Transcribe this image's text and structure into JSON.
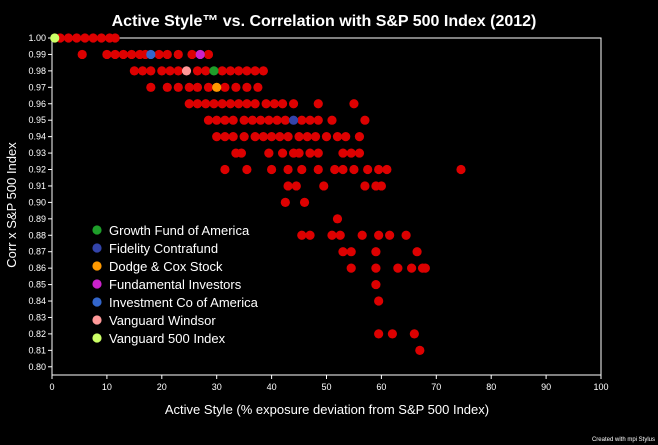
{
  "chart_data": {
    "type": "scatter",
    "title": "Active Style™ vs. Correlation with S&P 500 Index (2012)",
    "xlabel": "Active Style (% exposure deviation from S&P 500 Index)",
    "ylabel": "Corr x S&P 500 Index",
    "xlim": [
      0,
      100
    ],
    "ylim": [
      0.795,
      1.0
    ],
    "xticks": [
      "0",
      "10",
      "20",
      "30",
      "40",
      "50",
      "60",
      "70",
      "80",
      "90",
      "100"
    ],
    "yticks": [
      "1.00",
      "0.99",
      "0.98",
      "0.97",
      "0.96",
      "0.95",
      "0.94",
      "0.93",
      "0.92",
      "0.91",
      "0.90",
      "0.89",
      "0.88",
      "0.87",
      "0.86",
      "0.85",
      "0.84",
      "0.83",
      "0.82",
      "0.81",
      "0.80"
    ],
    "grid": false,
    "legend_position": "bottom-left",
    "footer_text": "Created with mpi Stylus",
    "colors": {
      "background": "#000000",
      "axes": "#ffffff",
      "points": "#dd0000"
    },
    "series": [
      {
        "name": "Growth Fund of America",
        "color": "#1e9e2a",
        "points": [
          [
            29.5,
            0.98
          ]
        ]
      },
      {
        "name": "Fidelity Contrafund",
        "color": "#3344aa",
        "points": [
          [
            44,
            0.95
          ]
        ]
      },
      {
        "name": "Dodge & Cox Stock",
        "color": "#ff9900",
        "points": [
          [
            30,
            0.97
          ]
        ]
      },
      {
        "name": "Fundamental Investors",
        "color": "#cc22cc",
        "points": [
          [
            27,
            0.99
          ]
        ]
      },
      {
        "name": "Investment Co of America",
        "color": "#3366cc",
        "points": [
          [
            18,
            0.99
          ]
        ]
      },
      {
        "name": "Vanguard Windsor",
        "color": "#ff9999",
        "points": [
          [
            24.5,
            0.98
          ]
        ]
      },
      {
        "name": "Vanguard 500 Index",
        "color": "#ccff66",
        "points": [
          [
            0.5,
            1.0
          ]
        ]
      }
    ],
    "funds": [
      [
        1.5,
        1.0
      ],
      [
        3,
        1.0
      ],
      [
        4.5,
        1.0
      ],
      [
        6,
        1.0
      ],
      [
        7.5,
        1.0
      ],
      [
        9,
        1.0
      ],
      [
        10.5,
        1.0
      ],
      [
        11.5,
        1.0
      ],
      [
        5.5,
        0.99
      ],
      [
        10,
        0.99
      ],
      [
        11.5,
        0.99
      ],
      [
        13,
        0.99
      ],
      [
        14.5,
        0.99
      ],
      [
        16,
        0.99
      ],
      [
        17,
        0.99
      ],
      [
        19.5,
        0.99
      ],
      [
        21,
        0.99
      ],
      [
        23,
        0.99
      ],
      [
        25.5,
        0.99
      ],
      [
        28.5,
        0.99
      ],
      [
        15,
        0.98
      ],
      [
        16.5,
        0.98
      ],
      [
        18,
        0.98
      ],
      [
        20,
        0.98
      ],
      [
        21.5,
        0.98
      ],
      [
        23,
        0.98
      ],
      [
        26.5,
        0.98
      ],
      [
        28,
        0.98
      ],
      [
        31,
        0.98
      ],
      [
        32.5,
        0.98
      ],
      [
        34,
        0.98
      ],
      [
        35.5,
        0.98
      ],
      [
        37,
        0.98
      ],
      [
        38.5,
        0.98
      ],
      [
        18,
        0.97
      ],
      [
        21,
        0.97
      ],
      [
        23,
        0.97
      ],
      [
        25,
        0.97
      ],
      [
        26.5,
        0.97
      ],
      [
        28.5,
        0.97
      ],
      [
        31.5,
        0.97
      ],
      [
        33.5,
        0.97
      ],
      [
        35.5,
        0.97
      ],
      [
        37.5,
        0.97
      ],
      [
        25,
        0.96
      ],
      [
        26.5,
        0.96
      ],
      [
        28,
        0.96
      ],
      [
        29.5,
        0.96
      ],
      [
        31,
        0.96
      ],
      [
        32.5,
        0.96
      ],
      [
        34,
        0.96
      ],
      [
        35.5,
        0.96
      ],
      [
        37,
        0.96
      ],
      [
        39,
        0.96
      ],
      [
        40.5,
        0.96
      ],
      [
        42,
        0.96
      ],
      [
        44,
        0.96
      ],
      [
        48.5,
        0.96
      ],
      [
        55,
        0.96
      ],
      [
        28.5,
        0.95
      ],
      [
        30,
        0.95
      ],
      [
        31.5,
        0.95
      ],
      [
        33,
        0.95
      ],
      [
        35,
        0.95
      ],
      [
        36.5,
        0.95
      ],
      [
        38,
        0.95
      ],
      [
        39.5,
        0.95
      ],
      [
        41,
        0.95
      ],
      [
        42.5,
        0.95
      ],
      [
        45.5,
        0.95
      ],
      [
        47,
        0.95
      ],
      [
        48.5,
        0.95
      ],
      [
        51,
        0.95
      ],
      [
        57,
        0.95
      ],
      [
        30,
        0.94
      ],
      [
        31.5,
        0.94
      ],
      [
        33,
        0.94
      ],
      [
        35,
        0.94
      ],
      [
        37,
        0.94
      ],
      [
        38.5,
        0.94
      ],
      [
        40,
        0.94
      ],
      [
        41.5,
        0.94
      ],
      [
        43,
        0.94
      ],
      [
        45,
        0.94
      ],
      [
        46.5,
        0.94
      ],
      [
        48,
        0.94
      ],
      [
        50,
        0.94
      ],
      [
        52,
        0.94
      ],
      [
        53.5,
        0.94
      ],
      [
        56,
        0.94
      ],
      [
        33.5,
        0.93
      ],
      [
        34.5,
        0.93
      ],
      [
        39.5,
        0.93
      ],
      [
        42,
        0.93
      ],
      [
        44,
        0.93
      ],
      [
        45,
        0.93
      ],
      [
        47,
        0.93
      ],
      [
        48.5,
        0.93
      ],
      [
        53,
        0.93
      ],
      [
        54.5,
        0.93
      ],
      [
        56,
        0.93
      ],
      [
        31.5,
        0.92
      ],
      [
        35.5,
        0.92
      ],
      [
        40,
        0.92
      ],
      [
        43,
        0.92
      ],
      [
        45.5,
        0.92
      ],
      [
        48.5,
        0.92
      ],
      [
        51.5,
        0.92
      ],
      [
        53,
        0.92
      ],
      [
        55,
        0.92
      ],
      [
        57.5,
        0.92
      ],
      [
        59.5,
        0.92
      ],
      [
        61,
        0.92
      ],
      [
        74.5,
        0.92
      ],
      [
        43,
        0.91
      ],
      [
        44.5,
        0.91
      ],
      [
        49.5,
        0.91
      ],
      [
        57,
        0.91
      ],
      [
        59,
        0.91
      ],
      [
        60,
        0.91
      ],
      [
        42.5,
        0.9
      ],
      [
        46,
        0.9
      ],
      [
        52,
        0.89
      ],
      [
        45.5,
        0.88
      ],
      [
        47,
        0.88
      ],
      [
        51,
        0.88
      ],
      [
        52.5,
        0.88
      ],
      [
        56.5,
        0.88
      ],
      [
        59.5,
        0.88
      ],
      [
        61.5,
        0.88
      ],
      [
        64.5,
        0.88
      ],
      [
        53,
        0.87
      ],
      [
        54.5,
        0.87
      ],
      [
        59,
        0.87
      ],
      [
        66.5,
        0.87
      ],
      [
        54.5,
        0.86
      ],
      [
        59,
        0.86
      ],
      [
        63,
        0.86
      ],
      [
        65.5,
        0.86
      ],
      [
        67.5,
        0.86
      ],
      [
        68,
        0.86
      ],
      [
        59,
        0.85
      ],
      [
        59.5,
        0.84
      ],
      [
        59.5,
        0.82
      ],
      [
        62,
        0.82
      ],
      [
        66,
        0.82
      ],
      [
        67,
        0.81
      ]
    ]
  }
}
